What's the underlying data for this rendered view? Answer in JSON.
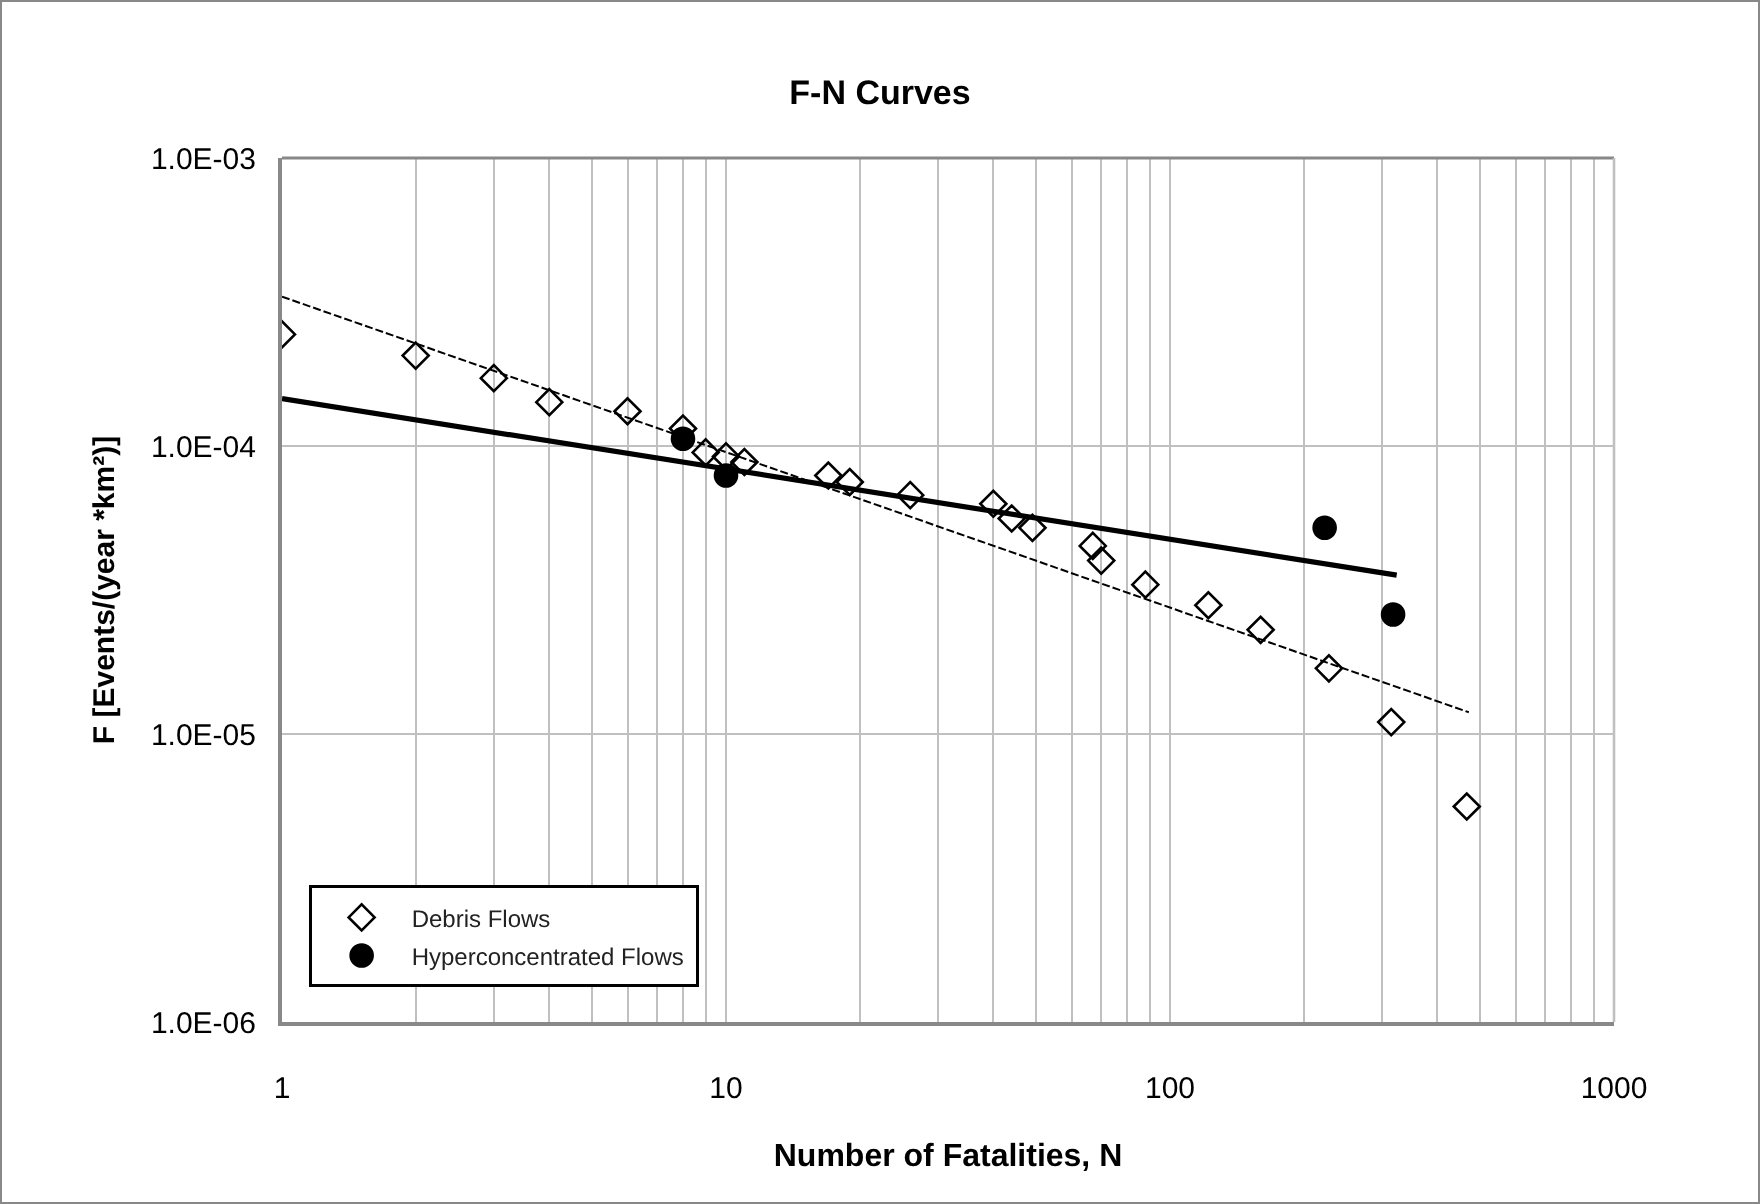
{
  "chart_data": {
    "type": "scatter",
    "title": "F-N Curves",
    "xlabel": "Number of Fatalities, N",
    "ylabel": "F [Events/(year *km²)]",
    "log": "xy",
    "grid": true,
    "legend": "bottom left",
    "xlim": [
      1,
      1000
    ],
    "xticks": [
      1,
      {
        "value": 2,
        "label": null
      },
      {
        "value": 3,
        "label": null
      },
      {
        "value": 4,
        "label": null
      },
      {
        "value": 5,
        "label": null
      },
      {
        "value": 6,
        "label": null
      },
      {
        "value": 7,
        "label": null
      },
      {
        "value": 8,
        "label": null
      },
      {
        "value": 9,
        "label": null
      },
      10,
      {
        "value": 20,
        "label": null
      },
      {
        "value": 30,
        "label": null
      },
      {
        "value": 40,
        "label": null
      },
      {
        "value": 50,
        "label": null
      },
      {
        "value": 60,
        "label": null
      },
      {
        "value": 70,
        "label": null
      },
      {
        "value": 80,
        "label": null
      },
      {
        "value": 90,
        "label": null
      },
      100,
      {
        "value": 200,
        "label": null
      },
      {
        "value": 300,
        "label": null
      },
      {
        "value": 400,
        "label": null
      },
      {
        "value": 500,
        "label": null
      },
      {
        "value": 600,
        "label": null
      },
      {
        "value": 700,
        "label": null
      },
      {
        "value": 800,
        "label": null
      },
      {
        "value": 900,
        "label": null
      },
      1000
    ],
    "ylim": [
      1e-06,
      0.001
    ],
    "yticks": [
      {
        "value": 1e-06,
        "label": "1.0E-06"
      },
      {
        "value": 1e-05,
        "label": "1.0E-05"
      },
      {
        "value": 0.0001,
        "label": "1.0E-04"
      },
      {
        "value": 0.001,
        "label": "1.0E-03"
      }
    ],
    "series": [
      {
        "name": "Debris Flows",
        "marker": "diamond",
        "color": "#000000",
        "x": [
          1,
          2,
          3,
          4,
          6,
          8,
          9,
          10,
          11,
          17,
          19,
          26,
          40,
          44,
          49,
          67,
          70,
          88,
          122,
          160,
          228,
          315,
          466
        ],
        "values": [
          0.000244,
          0.000206,
          0.000172,
          0.000142,
          0.000132,
          0.000115,
          9.5e-05,
          9.2e-05,
          8.8e-05,
          7.9e-05,
          7.5e-05,
          6.75e-05,
          6.3e-05,
          5.6e-05,
          5.2e-05,
          4.5e-05,
          4e-05,
          3.3e-05,
          2.8e-05,
          2.3e-05,
          1.69e-05,
          1.1e-05,
          5.6e-06
        ]
      },
      {
        "name": "Hyperconcentrated Flows",
        "marker": "circle",
        "color": "#000000",
        "x": [
          8,
          10,
          223,
          318
        ],
        "values": [
          0.000106,
          7.9e-05,
          5.2e-05,
          2.6e-05
        ]
      },
      {
        "type": "line",
        "line_style": "dashed",
        "color": "#000000",
        "x": [
          1,
          471
        ],
        "values": [
          0.00033,
          1.19e-05
        ]
      },
      {
        "type": "line",
        "line_style": "solid",
        "color": "#000000",
        "x": [
          1,
          324
        ],
        "values": [
          0.000146,
          3.56e-05
        ]
      }
    ]
  }
}
